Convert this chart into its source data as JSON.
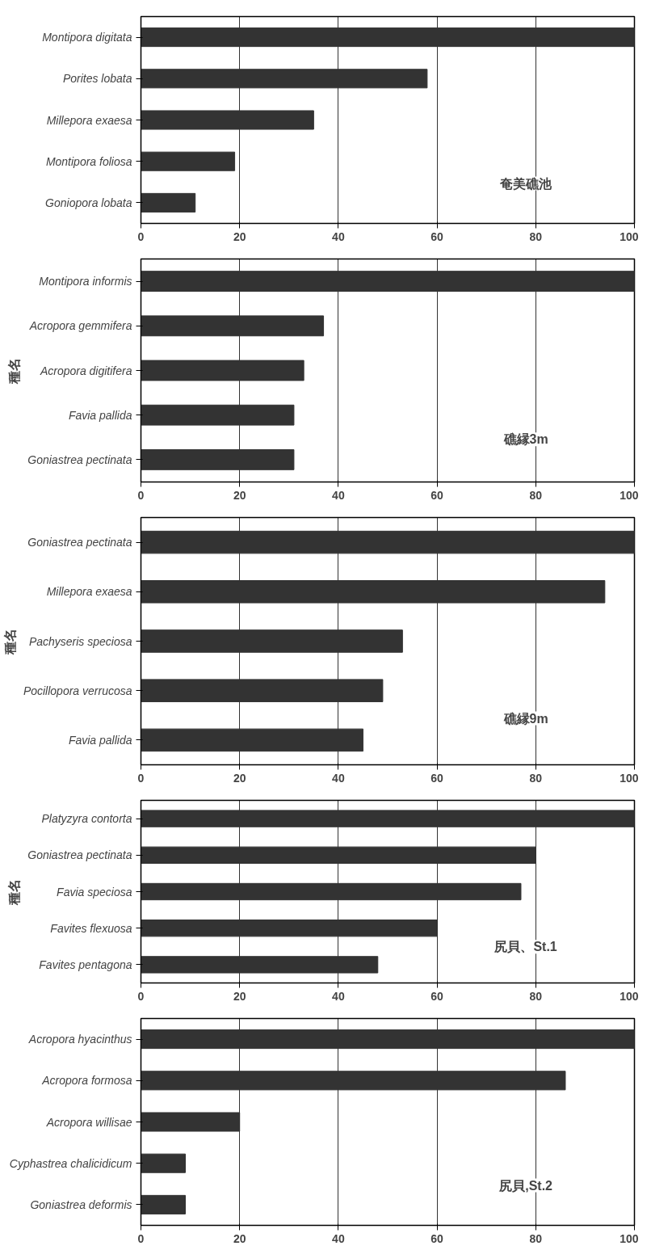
{
  "chart_data": [
    {
      "type": "bar",
      "orientation": "horizontal",
      "categories": [
        "Montipora digitata",
        "Porites lobata",
        "Millepora exaesa",
        "Montipora foliosa",
        "Goniopora lobata"
      ],
      "values": [
        100,
        58,
        35,
        19,
        11
      ],
      "color": "#333333",
      "xlim": [
        0,
        100
      ],
      "xticks": [
        0,
        20,
        40,
        60,
        80,
        100
      ],
      "grid": "x",
      "annotations": [
        "奄美礁池"
      ]
    },
    {
      "type": "bar",
      "orientation": "horizontal",
      "ylabel": "種名",
      "categories": [
        "Montipora informis",
        "Acropora gemmifera",
        "Acropora digitifera",
        "Favia pallida",
        "Goniastrea pectinata"
      ],
      "values": [
        100,
        37,
        33,
        31,
        31
      ],
      "color": "#333333",
      "xlim": [
        0,
        100
      ],
      "xticks": [
        0,
        20,
        40,
        60,
        80,
        100
      ],
      "grid": "x",
      "annotations": [
        "礁縁3m"
      ]
    },
    {
      "type": "bar",
      "orientation": "horizontal",
      "ylabel": "種名",
      "categories": [
        "Goniastrea pectinata",
        "Millepora exaesa",
        "Pachyseris speciosa",
        "Pocillopora verrucosa",
        "Favia pallida"
      ],
      "values": [
        100,
        94,
        53,
        49,
        45
      ],
      "color": "#333333",
      "xlim": [
        0,
        100
      ],
      "xticks": [
        0,
        20,
        40,
        60,
        80,
        100
      ],
      "grid": "x",
      "annotations": [
        "礁縁9m"
      ]
    },
    {
      "type": "bar",
      "orientation": "horizontal",
      "ylabel": "種名",
      "categories": [
        "Platyzyra contorta",
        "Goniastrea pectinata",
        "Favia speciosa",
        "Favites flexuosa",
        "Favites pentagona"
      ],
      "values": [
        100,
        80,
        77,
        60,
        48
      ],
      "color": "#333333",
      "xlim": [
        0,
        100
      ],
      "xticks": [
        0,
        20,
        40,
        60,
        80,
        100
      ],
      "grid": "x",
      "annotations": [
        "尻貝、St.1"
      ]
    },
    {
      "type": "bar",
      "orientation": "horizontal",
      "categories": [
        "Acropora hyacinthus",
        "Acropora formosa",
        "Acropora willisae",
        "Cyphastrea chalicidicum",
        "Goniastrea deformis"
      ],
      "values": [
        100,
        86,
        20,
        9,
        9
      ],
      "color": "#333333",
      "xlim": [
        0,
        100
      ],
      "xticks": [
        0,
        20,
        40,
        60,
        80,
        100
      ],
      "grid": "x",
      "annotations": [
        "尻貝,St.2"
      ]
    }
  ]
}
